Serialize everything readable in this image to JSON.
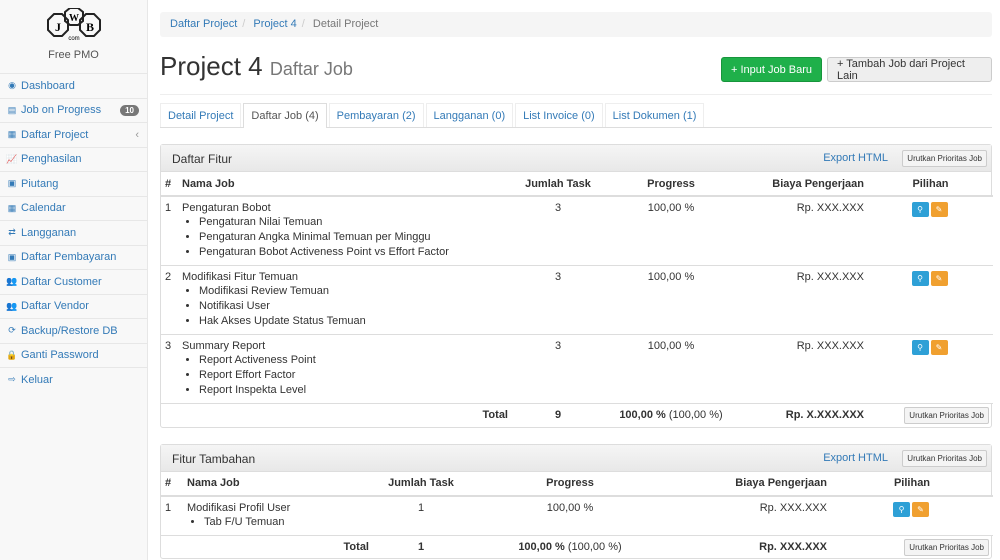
{
  "sidebar": {
    "logo_text": "JWB.com",
    "brand": "Free PMO",
    "items": [
      {
        "label": "Dashboard",
        "icon": "dashboard-icon",
        "glyph": "◉"
      },
      {
        "label": "Job on Progress",
        "icon": "tasks-icon",
        "glyph": "▤",
        "badge": "10"
      },
      {
        "label": "Daftar Project",
        "icon": "table-icon",
        "glyph": "▦",
        "chevron": "‹"
      },
      {
        "label": "Penghasilan",
        "icon": "line-chart-icon",
        "glyph": "📈"
      },
      {
        "label": "Piutang",
        "icon": "money-icon",
        "glyph": "▣"
      },
      {
        "label": "Calendar",
        "icon": "calendar-icon",
        "glyph": "▦"
      },
      {
        "label": "Langganan",
        "icon": "retweet-icon",
        "glyph": "⇄"
      },
      {
        "label": "Daftar Pembayaran",
        "icon": "money-icon",
        "glyph": "▣"
      },
      {
        "label": "Daftar Customer",
        "icon": "users-icon",
        "glyph": "👥"
      },
      {
        "label": "Daftar Vendor",
        "icon": "users-icon",
        "glyph": "👥"
      },
      {
        "label": "Backup/Restore DB",
        "icon": "refresh-icon",
        "glyph": "⟳"
      },
      {
        "label": "Ganti Password",
        "icon": "lock-icon",
        "glyph": "🔒"
      },
      {
        "label": "Keluar",
        "icon": "sign-out-icon",
        "glyph": "⇨"
      }
    ]
  },
  "breadcrumb": [
    "Daftar Project",
    "Project 4",
    "Detail Project"
  ],
  "header": {
    "title": "Project 4",
    "subtitle": "Daftar Job",
    "btn_new": "+ Input Job Baru",
    "btn_add": "+ Tambah Job dari Project Lain"
  },
  "tabs": [
    "Detail Project",
    "Daftar Job (4)",
    "Pembayaran (2)",
    "Langganan (0)",
    "List Invoice (0)",
    "List Dokumen (1)"
  ],
  "panel1": {
    "title": "Daftar Fitur",
    "export": "Export HTML",
    "sort": "Urutkan Prioritas Job",
    "columns": [
      "#",
      "Nama Job",
      "Jumlah Task",
      "Progress",
      "Biaya Pengerjaan",
      "Pilihan"
    ],
    "rows": [
      {
        "no": "1",
        "name": "Pengaturan Bobot",
        "tasks": [
          "Pengaturan Nilai Temuan",
          "Pengaturan Angka Minimal Temuan per Minggu",
          "Pengaturan Bobot Activeness Point vs Effort Factor"
        ],
        "count": "3",
        "progress": "100,00 %",
        "cost": "Rp. XXX.XXX"
      },
      {
        "no": "2",
        "name": "Modifikasi Fitur Temuan",
        "tasks": [
          "Modifikasi Review Temuan",
          "Notifikasi User",
          "Hak Akses Update Status Temuan"
        ],
        "count": "3",
        "progress": "100,00 %",
        "cost": "Rp. XXX.XXX"
      },
      {
        "no": "3",
        "name": "Summary Report",
        "tasks": [
          "Report Activeness Point",
          "Report Effort Factor",
          "Report Inspekta Level"
        ],
        "count": "3",
        "progress": "100,00 %",
        "cost": "Rp. XXX.XXX"
      }
    ],
    "total": {
      "label": "Total",
      "count": "9",
      "progress": "100,00 %",
      "progress_paren": "(100,00 %)",
      "cost": "Rp. X.XXX.XXX"
    }
  },
  "panel2": {
    "title": "Fitur Tambahan",
    "export": "Export HTML",
    "sort": "Urutkan Prioritas Job",
    "columns": [
      "#",
      "Nama Job",
      "Jumlah Task",
      "Progress",
      "Biaya Pengerjaan",
      "Pilihan"
    ],
    "rows": [
      {
        "no": "1",
        "name": "Modifikasi Profil User",
        "tasks": [
          "Tab F/U Temuan"
        ],
        "count": "1",
        "progress": "100,00 %",
        "cost": "Rp. XXX.XXX"
      }
    ],
    "total": {
      "label": "Total",
      "count": "1",
      "progress": "100,00 %",
      "progress_paren": "(100,00 %)",
      "cost": "Rp. XXX.XXX"
    }
  }
}
